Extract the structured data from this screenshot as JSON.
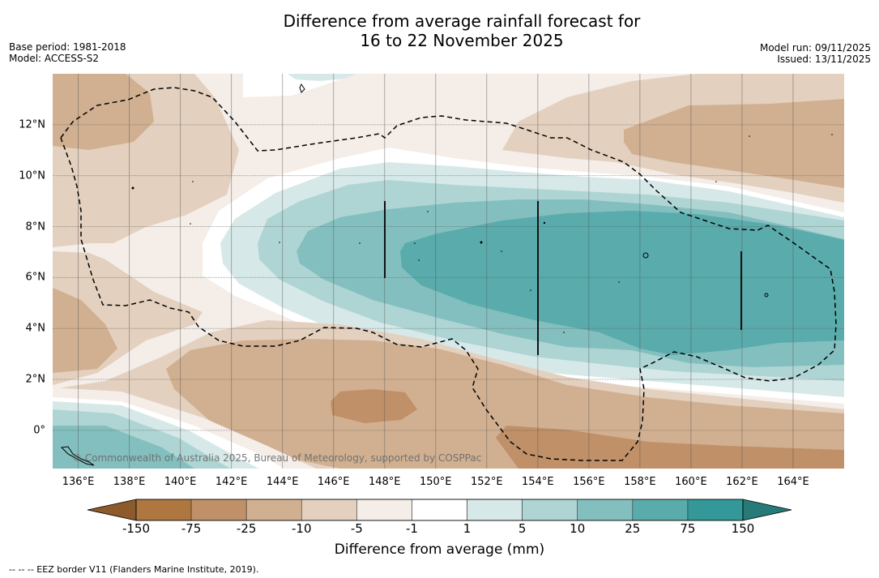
{
  "title": {
    "line1": "Difference from average rainfall forecast for",
    "line2": "16 to 22 November 2025"
  },
  "meta_left": {
    "base_period": "Base period: 1981-2018",
    "model": "Model: ACCESS-S2"
  },
  "meta_right": {
    "model_run": "Model run: 09/11/2025",
    "issued": "Issued: 13/11/2025"
  },
  "map": {
    "extent": {
      "lon_min": 135,
      "lon_max": 166,
      "lat_min": -1.5,
      "lat_max": 14
    },
    "lon_ticks": [
      {
        "value": 136,
        "label": "136°E"
      },
      {
        "value": 138,
        "label": "138°E"
      },
      {
        "value": 140,
        "label": "140°E"
      },
      {
        "value": 142,
        "label": "142°E"
      },
      {
        "value": 144,
        "label": "144°E"
      },
      {
        "value": 146,
        "label": "146°E"
      },
      {
        "value": 148,
        "label": "148°E"
      },
      {
        "value": 150,
        "label": "150°E"
      },
      {
        "value": 152,
        "label": "152°E"
      },
      {
        "value": 154,
        "label": "154°E"
      },
      {
        "value": 156,
        "label": "156°E"
      },
      {
        "value": 158,
        "label": "158°E"
      },
      {
        "value": 160,
        "label": "160°E"
      },
      {
        "value": 162,
        "label": "162°E"
      },
      {
        "value": 164,
        "label": "164°E"
      }
    ],
    "lat_ticks": [
      {
        "value": 12,
        "label": "12°N"
      },
      {
        "value": 10,
        "label": "10°N"
      },
      {
        "value": 8,
        "label": "8°N"
      },
      {
        "value": 6,
        "label": "6°N"
      },
      {
        "value": 4,
        "label": "4°N"
      },
      {
        "value": 2,
        "label": "2°N"
      },
      {
        "value": 0,
        "label": "0°"
      }
    ],
    "copyright": "© Commonwealth of Australia 2025, Bureau of Meteorology, supported by COSPPac"
  },
  "colorbar": {
    "label": "Difference from average (mm)",
    "ticks": [
      "-150",
      "-75",
      "-25",
      "-10",
      "-5",
      "-1",
      "1",
      "5",
      "10",
      "25",
      "75",
      "150"
    ],
    "colors": {
      "extend_low": "#8c5a2b",
      "bins": [
        "#ad773f",
        "#c09068",
        "#d1b091",
        "#e3d0be",
        "#f4ede8",
        "#ffffff",
        "#d6e9e8",
        "#aed5d4",
        "#84bfbf",
        "#5aabab",
        "#339897"
      ],
      "extend_high": "#267b79"
    }
  },
  "footnote": "--  --  -- EEZ border V11 (Flanders Marine Institute, 2019)."
}
